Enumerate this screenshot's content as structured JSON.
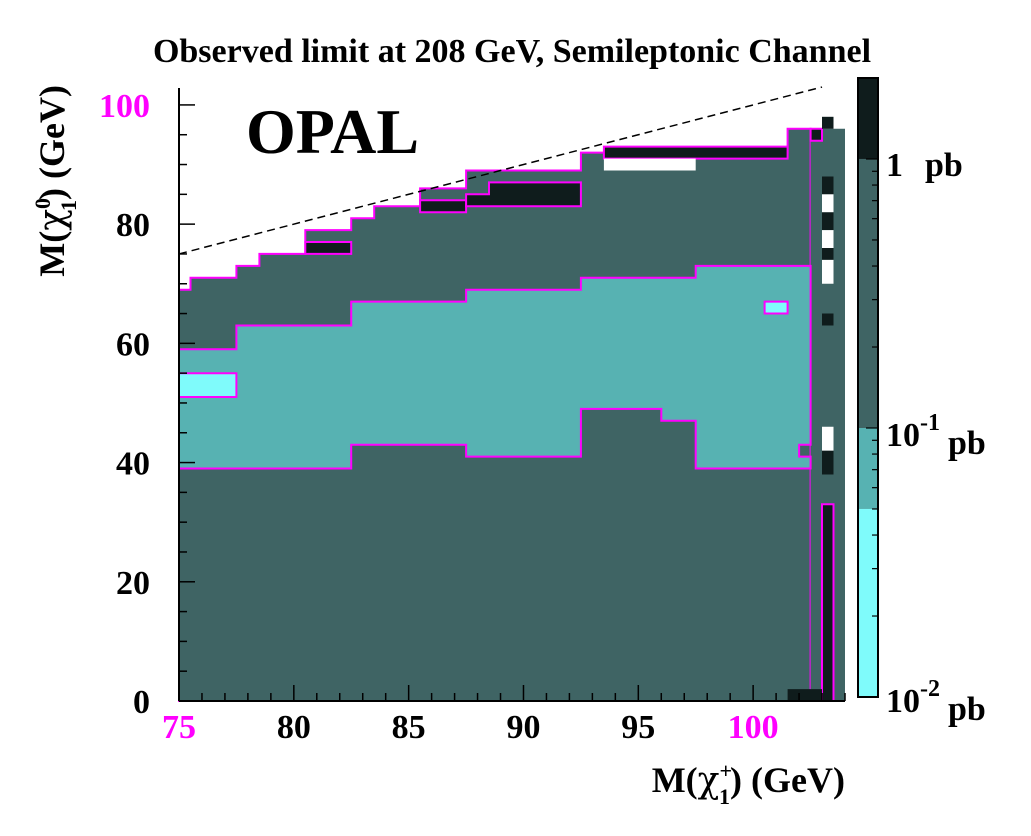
{
  "chart_data": {
    "type": "heatmap",
    "title": "Observed limit at 208 GeV, Semileptonic Channel",
    "watermark": "OPAL",
    "xlabel": {
      "pre": "M(",
      "sym": "χ",
      "sup": "+",
      "sub": "1",
      "post": ") (GeV)"
    },
    "ylabel": {
      "pre": "M(",
      "sym": "χ",
      "sup": "0",
      "sub": "1",
      "post": ") (GeV)"
    },
    "xlim": [
      75,
      104
    ],
    "ylim": [
      0,
      102
    ],
    "xticks": [
      {
        "value": 75,
        "label": "75",
        "highlight": true
      },
      {
        "value": 80,
        "label": "80",
        "highlight": false
      },
      {
        "value": 85,
        "label": "85",
        "highlight": false
      },
      {
        "value": 90,
        "label": "90",
        "highlight": false
      },
      {
        "value": 95,
        "label": "95",
        "highlight": false
      },
      {
        "value": 100,
        "label": "100",
        "highlight": true
      }
    ],
    "yticks": [
      {
        "value": 0,
        "label": "0",
        "highlight": false
      },
      {
        "value": 20,
        "label": "20",
        "highlight": false
      },
      {
        "value": 40,
        "label": "40",
        "highlight": false
      },
      {
        "value": 60,
        "label": "60",
        "highlight": false
      },
      {
        "value": 80,
        "label": "80",
        "highlight": false
      },
      {
        "value": 100,
        "label": "100",
        "highlight": true
      }
    ],
    "kinematic_line": {
      "x1": 75,
      "y1": 75,
      "x2": 103,
      "y2": 103,
      "style": "dashed"
    },
    "colors": {
      "level0": "#7ffbfb",
      "level1": "#57b2b2",
      "level2": "#3f6464",
      "level3": "#0f1c1c",
      "contour": "#ff00ff",
      "highlight_tick": "#ff00ff"
    },
    "colorbar": {
      "bands": [
        {
          "from": 0.01,
          "to": 0.05,
          "color": "#7ffbfb"
        },
        {
          "from": 0.05,
          "to": 0.1,
          "color": "#57b2b2"
        },
        {
          "from": 0.1,
          "to": 1.0,
          "color": "#3f6464"
        },
        {
          "from": 1.0,
          "to": 2.0,
          "color": "#0f1c1c"
        }
      ],
      "labels": [
        {
          "value": 1.0,
          "base": "1",
          "exp": "",
          "unit": "pb"
        },
        {
          "value": 0.1,
          "base": "10",
          "exp": "-1",
          "unit": "pb"
        },
        {
          "value": 0.01,
          "base": "10",
          "exp": "-2",
          "unit": "pb"
        }
      ]
    },
    "regions": [
      {
        "level": 2,
        "outline": true,
        "points": [
          [
            75,
            0
          ],
          [
            102.5,
            0
          ],
          [
            102.5,
            96
          ],
          [
            101.5,
            96
          ],
          [
            101.5,
            92
          ],
          [
            92.5,
            92
          ],
          [
            92.5,
            89
          ],
          [
            87.5,
            89
          ],
          [
            87.5,
            86
          ],
          [
            85.5,
            86
          ],
          [
            85.5,
            83
          ],
          [
            83.5,
            83
          ],
          [
            83.5,
            81
          ],
          [
            82.5,
            81
          ],
          [
            82.5,
            79
          ],
          [
            80.5,
            79
          ],
          [
            80.5,
            75
          ],
          [
            78.5,
            75
          ],
          [
            78.5,
            73
          ],
          [
            77.5,
            73
          ],
          [
            77.5,
            71
          ],
          [
            75.5,
            71
          ],
          [
            75.5,
            69
          ],
          [
            75,
            69
          ]
        ]
      },
      {
        "level": 2,
        "outline": false,
        "points": [
          [
            102.5,
            0
          ],
          [
            104,
            0
          ],
          [
            104,
            96
          ],
          [
            102.5,
            96
          ]
        ]
      },
      {
        "level": 1,
        "outline": true,
        "points": [
          [
            75,
            39
          ],
          [
            82.5,
            39
          ],
          [
            82.5,
            43
          ],
          [
            87.5,
            43
          ],
          [
            87.5,
            41
          ],
          [
            92.5,
            41
          ],
          [
            92.5,
            49
          ],
          [
            96,
            49
          ],
          [
            96,
            47
          ],
          [
            97.5,
            47
          ],
          [
            97.5,
            39
          ],
          [
            102.5,
            39
          ],
          [
            102.5,
            41
          ],
          [
            102,
            41
          ],
          [
            102,
            43
          ],
          [
            102.5,
            43
          ],
          [
            102.5,
            73
          ],
          [
            97.5,
            73
          ],
          [
            97.5,
            71
          ],
          [
            92.5,
            71
          ],
          [
            92.5,
            69
          ],
          [
            87.5,
            69
          ],
          [
            87.5,
            67
          ],
          [
            82.5,
            67
          ],
          [
            82.5,
            63
          ],
          [
            77.5,
            63
          ],
          [
            77.5,
            59
          ],
          [
            75,
            59
          ]
        ]
      },
      {
        "level": 0,
        "outline": true,
        "points": [
          [
            75,
            51
          ],
          [
            77.5,
            51
          ],
          [
            77.5,
            55
          ],
          [
            75,
            55
          ]
        ]
      },
      {
        "level": 0,
        "outline": true,
        "points": [
          [
            100.5,
            65
          ],
          [
            101.5,
            65
          ],
          [
            101.5,
            67
          ],
          [
            100.5,
            67
          ]
        ]
      },
      {
        "level": 3,
        "outline": true,
        "points": [
          [
            80.5,
            75
          ],
          [
            82.5,
            75
          ],
          [
            82.5,
            77
          ],
          [
            80.5,
            77
          ]
        ]
      },
      {
        "level": 3,
        "outline": true,
        "points": [
          [
            85.5,
            82
          ],
          [
            87.5,
            82
          ],
          [
            87.5,
            84
          ],
          [
            85.5,
            84
          ]
        ]
      },
      {
        "level": 3,
        "outline": true,
        "points": [
          [
            87.5,
            83
          ],
          [
            92.5,
            83
          ],
          [
            92.5,
            87
          ],
          [
            88.5,
            87
          ],
          [
            88.5,
            85
          ],
          [
            87.5,
            85
          ]
        ]
      },
      {
        "level": 3,
        "outline": true,
        "points": [
          [
            93.5,
            91
          ],
          [
            101.5,
            91
          ],
          [
            101.5,
            93
          ],
          [
            93.5,
            93
          ]
        ]
      },
      {
        "level": 3,
        "outline": true,
        "points": [
          [
            102.5,
            94
          ],
          [
            103,
            94
          ],
          [
            103,
            96
          ],
          [
            102.5,
            96
          ]
        ]
      },
      {
        "level": 3,
        "outline": true,
        "points": [
          [
            103,
            0
          ],
          [
            103.5,
            0
          ],
          [
            103.5,
            33
          ],
          [
            103,
            33
          ]
        ]
      },
      {
        "level": 3,
        "outline": false,
        "points": [
          [
            101.5,
            0
          ],
          [
            103,
            0
          ],
          [
            103,
            2
          ],
          [
            101.5,
            2
          ]
        ]
      },
      {
        "level": 3,
        "outline": false,
        "points": [
          [
            103,
            38
          ],
          [
            103.5,
            38
          ],
          [
            103.5,
            42
          ],
          [
            103,
            42
          ]
        ]
      },
      {
        "level": 3,
        "outline": false,
        "points": [
          [
            103,
            63
          ],
          [
            103.5,
            63
          ],
          [
            103.5,
            65
          ],
          [
            103,
            65
          ]
        ]
      },
      {
        "level": 3,
        "outline": false,
        "points": [
          [
            103,
            74
          ],
          [
            103.5,
            74
          ],
          [
            103.5,
            76
          ],
          [
            103,
            76
          ]
        ]
      },
      {
        "level": 3,
        "outline": false,
        "points": [
          [
            103,
            79
          ],
          [
            103.5,
            79
          ],
          [
            103.5,
            82
          ],
          [
            103,
            82
          ]
        ]
      },
      {
        "level": 3,
        "outline": false,
        "points": [
          [
            103,
            85
          ],
          [
            103.5,
            85
          ],
          [
            103.5,
            88
          ],
          [
            103,
            88
          ]
        ]
      },
      {
        "level": 3,
        "outline": false,
        "points": [
          [
            103,
            96
          ],
          [
            103.5,
            96
          ],
          [
            103.5,
            98
          ],
          [
            103,
            98
          ]
        ]
      }
    ],
    "white_gaps": [
      {
        "points": [
          [
            93.5,
            89
          ],
          [
            97.5,
            89
          ],
          [
            97.5,
            91
          ],
          [
            93.5,
            91
          ]
        ]
      },
      {
        "points": [
          [
            103,
            42
          ],
          [
            103.5,
            42
          ],
          [
            103.5,
            46
          ],
          [
            103,
            46
          ]
        ]
      },
      {
        "points": [
          [
            103,
            70
          ],
          [
            103.5,
            70
          ],
          [
            103.5,
            74
          ],
          [
            103,
            74
          ]
        ]
      },
      {
        "points": [
          [
            103,
            76
          ],
          [
            103.5,
            76
          ],
          [
            103.5,
            79
          ],
          [
            103,
            79
          ]
        ]
      },
      {
        "points": [
          [
            103,
            82
          ],
          [
            103.5,
            82
          ],
          [
            103.5,
            85
          ],
          [
            103,
            85
          ]
        ]
      }
    ]
  }
}
